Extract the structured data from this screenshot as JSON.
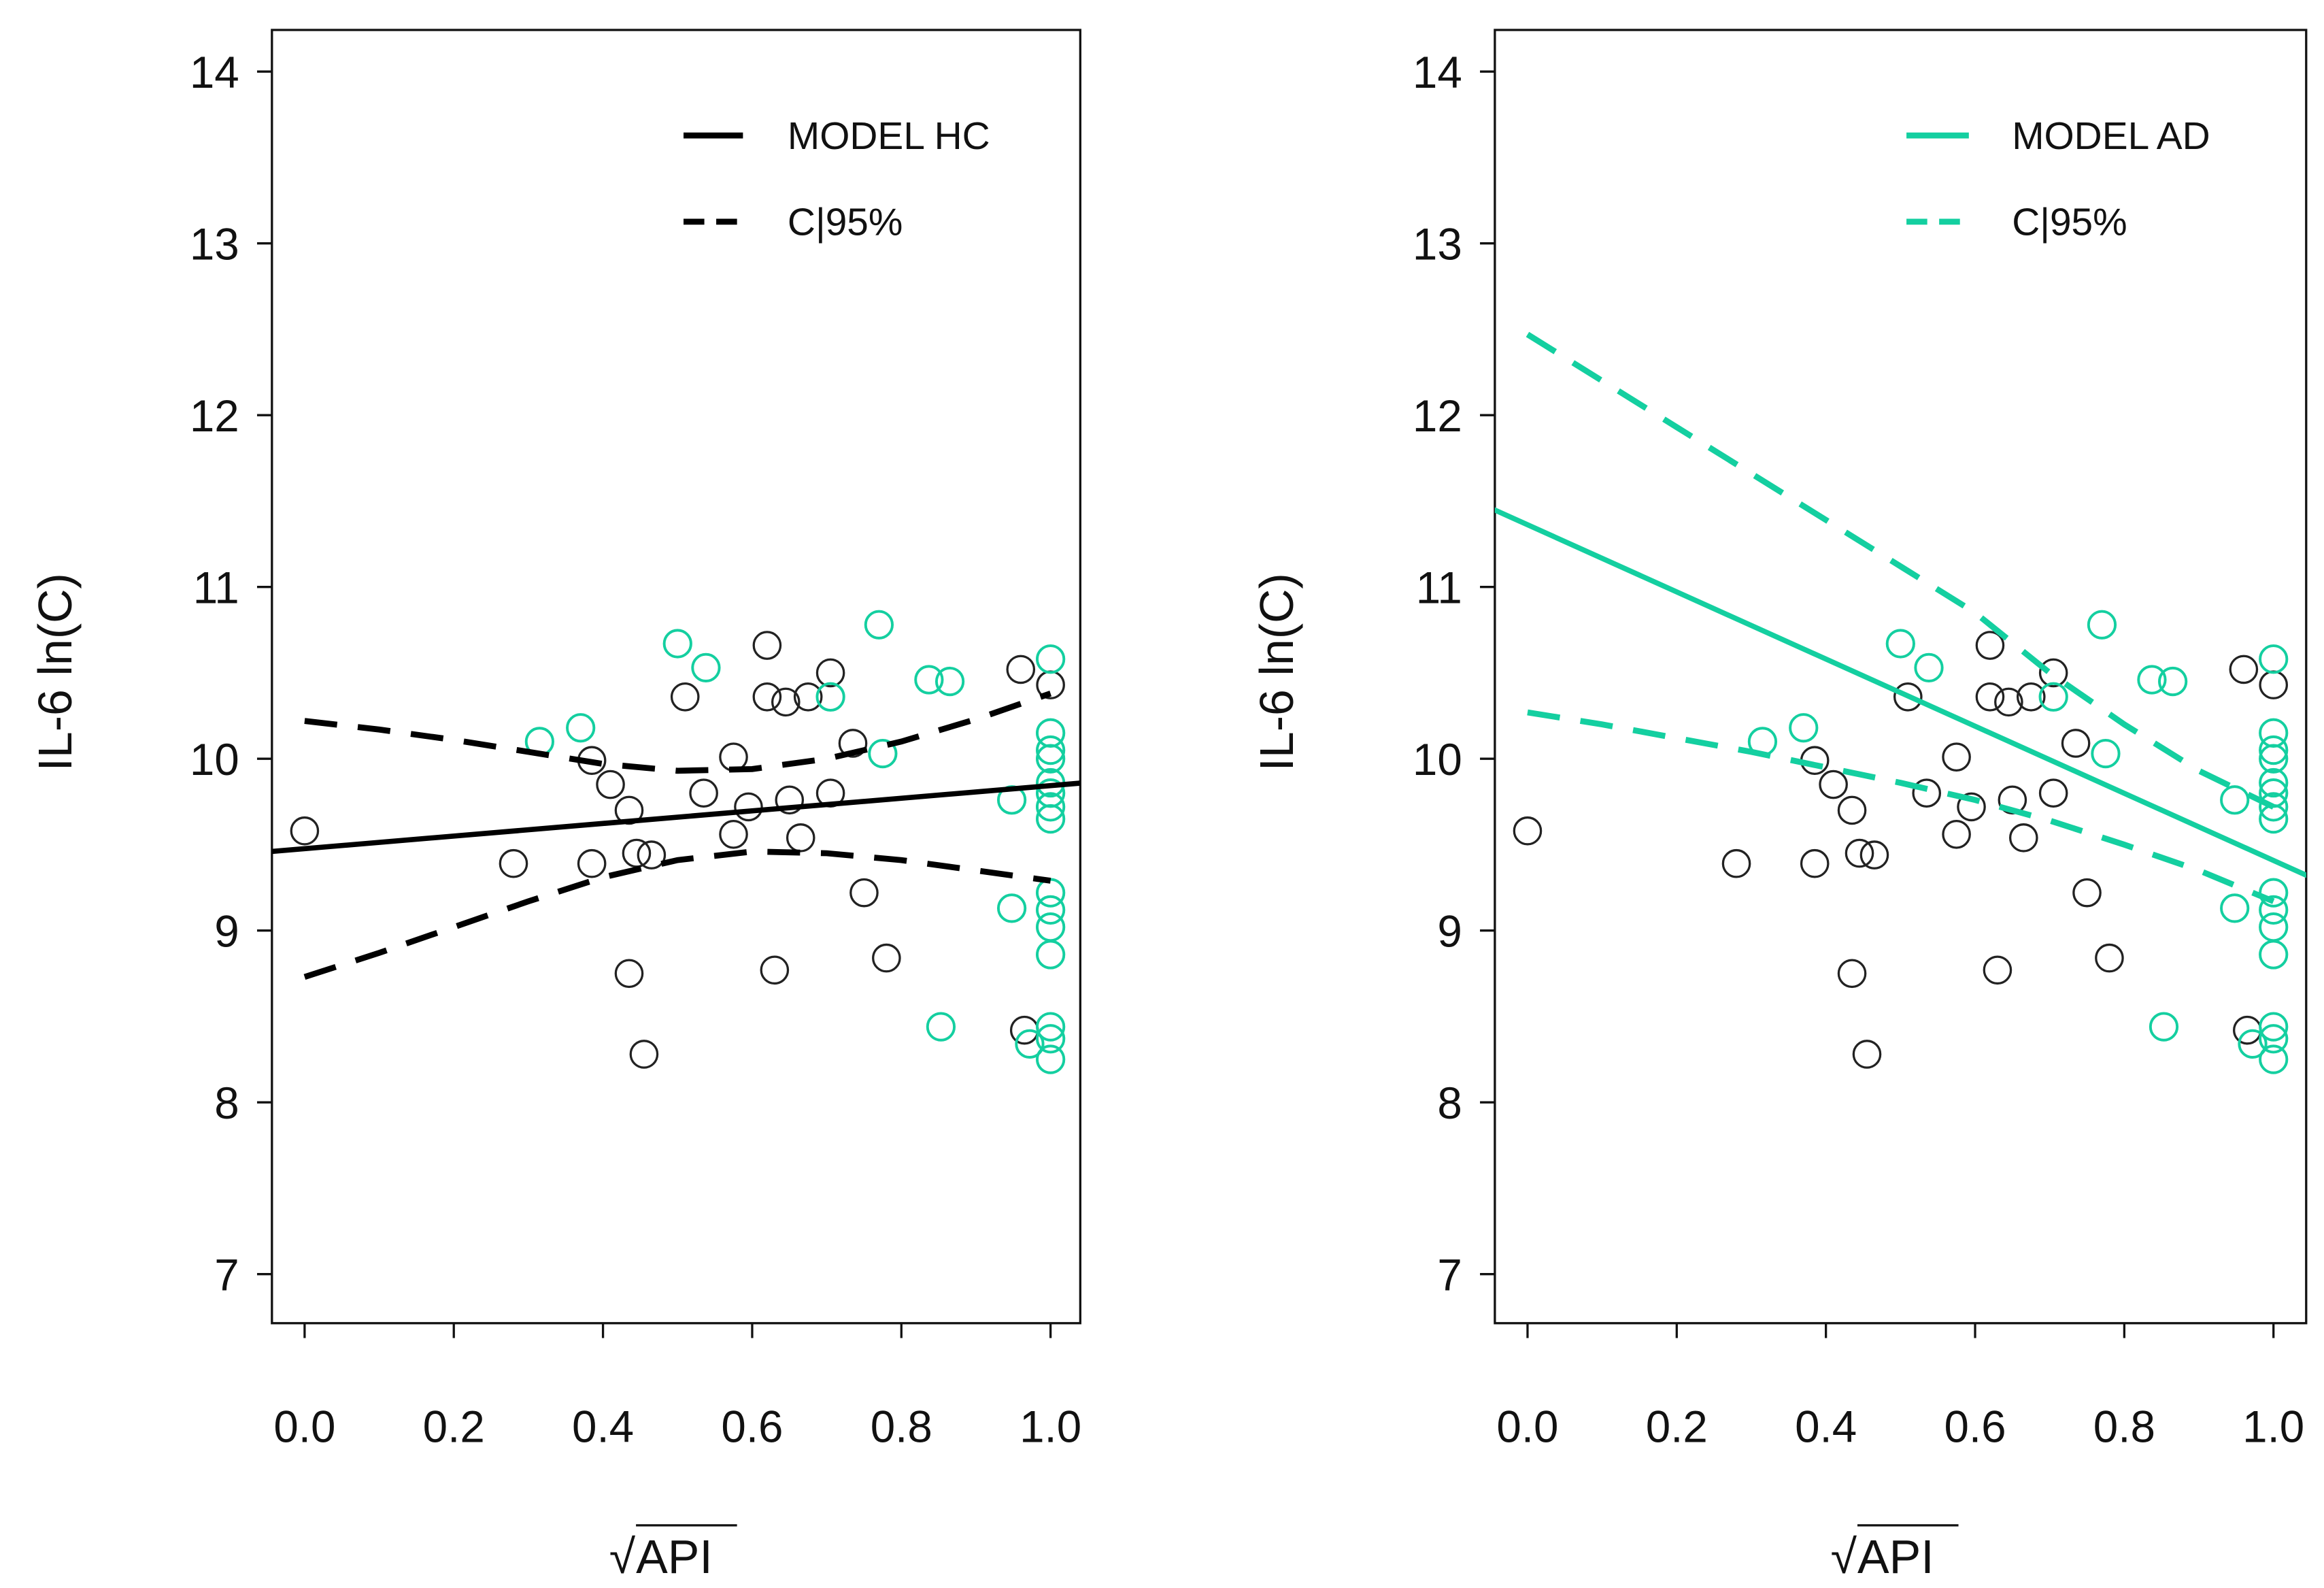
{
  "colors": {
    "hc": "#000000",
    "ad": "#14CFA0",
    "hc_points": "#222222"
  },
  "chart_data": [
    {
      "type": "scatter",
      "title": "",
      "xlabel": "API",
      "xlabel_sqrt": "√",
      "ylabel": "IL-6 ln(C)",
      "xlim": [
        -0.045,
        1.045
      ],
      "ylim": [
        7,
        14
      ],
      "xticks": [
        "0.0",
        "0.2",
        "0.4",
        "0.6",
        "0.8",
        "1.0"
      ],
      "yticks": [
        "7",
        "8",
        "9",
        "10",
        "11",
        "12",
        "13",
        "14"
      ],
      "legend": {
        "position": "top-right",
        "entries": [
          "MODEL HC",
          "CI95%"
        ],
        "entry_labels": [
          "MODEL HC",
          "C|95%"
        ]
      },
      "model_color": "hc",
      "model": {
        "x": [
          -0.045,
          1.045
        ],
        "y": [
          9.46,
          9.86
        ]
      },
      "ci_upper": {
        "x": [
          0,
          0.1,
          0.2,
          0.3,
          0.4,
          0.5,
          0.6,
          0.7,
          0.8,
          0.9,
          1.0
        ],
        "y": [
          10.22,
          10.17,
          10.11,
          10.04,
          9.97,
          9.93,
          9.94,
          10.0,
          10.1,
          10.23,
          10.38
        ]
      },
      "ci_lower": {
        "x": [
          0,
          0.1,
          0.2,
          0.3,
          0.4,
          0.5,
          0.6,
          0.7,
          0.8,
          0.9,
          1.0
        ],
        "y": [
          8.73,
          8.87,
          9.02,
          9.17,
          9.31,
          9.41,
          9.46,
          9.45,
          9.41,
          9.35,
          9.29
        ]
      }
    },
    {
      "type": "scatter",
      "title": "",
      "xlabel": "API",
      "xlabel_sqrt": "√",
      "ylabel": "IL-6 ln(C)",
      "xlim": [
        -0.045,
        1.045
      ],
      "ylim": [
        7,
        14
      ],
      "xticks": [
        "0.0",
        "0.2",
        "0.4",
        "0.6",
        "0.8",
        "1.0"
      ],
      "yticks": [
        "7",
        "8",
        "9",
        "10",
        "11",
        "12",
        "13",
        "14"
      ],
      "legend": {
        "position": "top-right",
        "entries": [
          "MODEL AD",
          "CI95%"
        ],
        "entry_labels": [
          "MODEL AD",
          "C|95%"
        ]
      },
      "model_color": "ad",
      "model": {
        "x": [
          -0.045,
          1.045
        ],
        "y": [
          11.45,
          9.32
        ]
      },
      "ci_upper": {
        "x": [
          0,
          0.1,
          0.2,
          0.3,
          0.4,
          0.5,
          0.6,
          0.7,
          0.8,
          0.9,
          1.0
        ],
        "y": [
          12.47,
          12.2,
          11.93,
          11.66,
          11.39,
          11.12,
          10.85,
          10.5,
          10.2,
          9.93,
          9.72
        ]
      },
      "ci_lower": {
        "x": [
          0,
          0.1,
          0.2,
          0.3,
          0.4,
          0.5,
          0.6,
          0.7,
          0.8,
          0.9,
          1.0
        ],
        "y": [
          10.27,
          10.2,
          10.12,
          10.04,
          9.95,
          9.86,
          9.76,
          9.64,
          9.5,
          9.35,
          9.17
        ]
      }
    }
  ],
  "points": {
    "hc": [
      [
        0,
        9.58
      ],
      [
        0.28,
        9.39
      ],
      [
        0.385,
        9.99
      ],
      [
        0.385,
        9.39
      ],
      [
        0.41,
        9.85
      ],
      [
        0.435,
        9.7
      ],
      [
        0.445,
        9.45
      ],
      [
        0.465,
        9.44
      ],
      [
        0.435,
        8.75
      ],
      [
        0.455,
        8.28
      ],
      [
        0.51,
        10.36
      ],
      [
        0.535,
        9.8
      ],
      [
        0.575,
        10.01
      ],
      [
        0.575,
        9.56
      ],
      [
        0.595,
        9.72
      ],
      [
        0.62,
        10.66
      ],
      [
        0.62,
        10.36
      ],
      [
        0.645,
        10.33
      ],
      [
        0.675,
        10.36
      ],
      [
        0.705,
        10.5
      ],
      [
        0.65,
        9.76
      ],
      [
        0.665,
        9.54
      ],
      [
        0.705,
        9.8
      ],
      [
        0.735,
        10.09
      ],
      [
        0.75,
        9.22
      ],
      [
        0.78,
        8.84
      ],
      [
        0.63,
        8.77
      ],
      [
        0.96,
        10.52
      ],
      [
        1.0,
        10.43
      ],
      [
        0.965,
        8.42
      ]
    ],
    "ad": [
      [
        0.315,
        10.1
      ],
      [
        0.37,
        10.18
      ],
      [
        0.5,
        10.67
      ],
      [
        0.538,
        10.53
      ],
      [
        0.705,
        10.36
      ],
      [
        0.77,
        10.78
      ],
      [
        0.775,
        10.03
      ],
      [
        0.837,
        10.46
      ],
      [
        0.865,
        10.45
      ],
      [
        0.853,
        8.44
      ],
      [
        0.948,
        9.76
      ],
      [
        0.948,
        9.13
      ],
      [
        0.972,
        8.34
      ],
      [
        1.0,
        10.58
      ],
      [
        1.0,
        10.15
      ],
      [
        1.0,
        10.05
      ],
      [
        1.0,
        10.0
      ],
      [
        1.0,
        9.86
      ],
      [
        1.0,
        9.8
      ],
      [
        1.0,
        9.72
      ],
      [
        1.0,
        9.65
      ],
      [
        1.0,
        9.22
      ],
      [
        1.0,
        9.12
      ],
      [
        1.0,
        9.02
      ],
      [
        1.0,
        8.86
      ],
      [
        1.0,
        8.44
      ],
      [
        1.0,
        8.37
      ],
      [
        1.0,
        8.25
      ]
    ]
  }
}
